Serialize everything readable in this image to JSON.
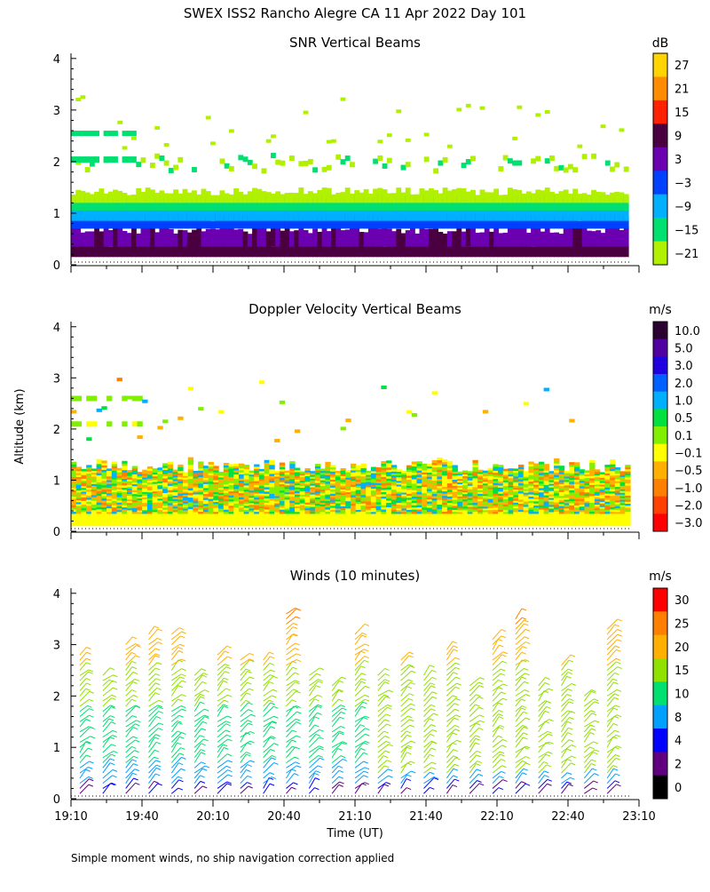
{
  "page": {
    "title": "SWEX ISS2 Rancho Alegre CA   11 Apr 2022 Day 101",
    "y_axis_label": "Altitude (km)",
    "x_axis_label": "Time (UT)",
    "footnote": "Simple moment winds, no ship navigation correction applied"
  },
  "chart_data": [
    {
      "type": "heatmap",
      "title": "SNR Vertical Beams",
      "units": "dB",
      "x_ticks": [
        "",
        "",
        "",
        "",
        "",
        "",
        "",
        "",
        "",
        ""
      ],
      "y_ticks": [
        "0",
        "1",
        "2",
        "3",
        "4"
      ],
      "ylim": [
        0,
        4
      ],
      "colorbar_labels": [
        "27",
        "21",
        "15",
        "9",
        "3",
        "−3",
        "−9",
        "−15",
        "−21"
      ],
      "colorbar_colors": [
        "#ffd400",
        "#ff8c00",
        "#ff2200",
        "#4a0040",
        "#6a00b0",
        "#0040ff",
        "#00b0ff",
        "#00e070",
        "#b0f000"
      ],
      "layers": [
        {
          "altitude_km": [
            0.15,
            0.4
          ],
          "value": "9"
        },
        {
          "altitude_km": [
            0.4,
            0.8
          ],
          "value": "3"
        },
        {
          "altitude_km": [
            0.8,
            1.1
          ],
          "value": "-9"
        },
        {
          "altitude_km": [
            1.1,
            1.4
          ],
          "value": "-15"
        },
        {
          "altitude_km": [
            1.8,
            2.1
          ],
          "value": "-21"
        },
        {
          "altitude_km": [
            2.5,
            3.2
          ],
          "value": "-21"
        }
      ]
    },
    {
      "type": "heatmap",
      "title": "Doppler Velocity Vertical Beams",
      "units": "m/s",
      "x_ticks": [
        "",
        "",
        "",
        "",
        "",
        "",
        "",
        "",
        "",
        ""
      ],
      "y_ticks": [
        "0",
        "1",
        "2",
        "3",
        "4"
      ],
      "ylim": [
        0,
        4
      ],
      "colorbar_labels": [
        "10.0",
        "5.0",
        "3.0",
        "2.0",
        "1.0",
        "0.5",
        "0.1",
        "−0.1",
        "−0.5",
        "−1.0",
        "−2.0",
        "−3.0"
      ],
      "colorbar_colors": [
        "#2a0030",
        "#5000a0",
        "#2000e0",
        "#0060ff",
        "#00b0ff",
        "#00e040",
        "#80f000",
        "#ffff00",
        "#ffb000",
        "#ff8000",
        "#ff4000",
        "#ff0000"
      ],
      "layers": [
        {
          "altitude_km": [
            0.1,
            0.35
          ],
          "value": "-0.1"
        },
        {
          "altitude_km": [
            0.35,
            1.4
          ],
          "value": "-0.5 to 0.5 mixed"
        }
      ]
    },
    {
      "type": "scatter",
      "title": "Winds (10 minutes)",
      "units": "m/s",
      "x_ticks": [
        "19:10",
        "19:40",
        "20:10",
        "20:40",
        "21:10",
        "21:40",
        "22:10",
        "22:40",
        "23:10"
      ],
      "y_ticks": [
        "0",
        "1",
        "2",
        "3",
        "4"
      ],
      "ylim": [
        0,
        4
      ],
      "xlim": [
        "19:10",
        "23:10"
      ],
      "colorbar_labels": [
        "30",
        "25",
        "20",
        "15",
        "10",
        "8",
        "4",
        "2",
        "0"
      ],
      "colorbar_colors": [
        "#ff0000",
        "#ff8000",
        "#ffb000",
        "#90e000",
        "#00e070",
        "#00a0ff",
        "#0000ff",
        "#600080",
        "#000000"
      ],
      "description": "Wind barbs at 10-minute intervals, speeds roughly 5-15 m/s below 2 km and 20-30 m/s above 3 km"
    }
  ]
}
